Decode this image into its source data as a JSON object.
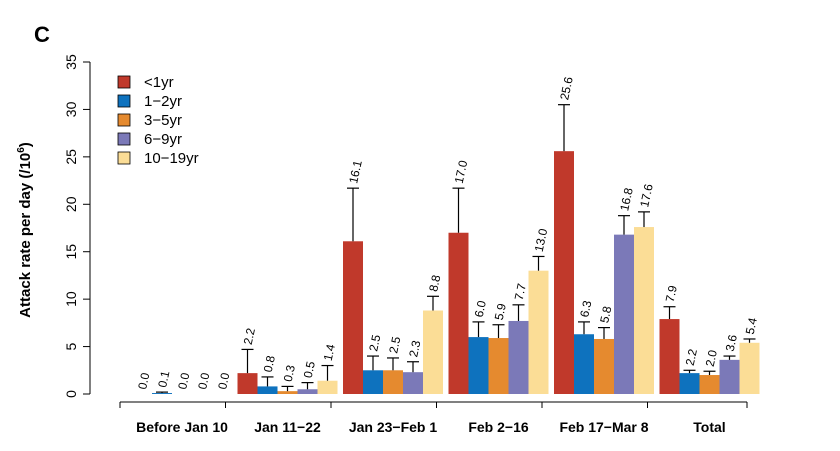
{
  "panel_label": "C",
  "chart_data": {
    "type": "bar",
    "ylabel": "Attack rate per day (/10",
    "ylabel_sup": "6",
    "ylabel_tail": ")",
    "ylim": [
      0,
      35
    ],
    "yticks": [
      0,
      5,
      10,
      15,
      20,
      25,
      30,
      35
    ],
    "grid": false,
    "legend_position": "top-left",
    "categories": [
      "Before Jan 10",
      "Jan 11−22",
      "Jan 23−Feb 1",
      "Feb 2−16",
      "Feb 17−Mar 8",
      "Total"
    ],
    "series": [
      {
        "name": "<1yr",
        "color": "#C0392B",
        "values": [
          0.0,
          2.2,
          16.1,
          17.0,
          25.6,
          7.9
        ],
        "labels": [
          "0.0",
          "2.2",
          "16.1",
          "17.0",
          "25.6",
          "7.9"
        ],
        "err_upper": [
          0.0,
          4.7,
          21.7,
          21.7,
          30.5,
          9.2
        ]
      },
      {
        "name": "1−2yr",
        "color": "#0E72BE",
        "values": [
          0.1,
          0.8,
          2.5,
          6.0,
          6.3,
          2.2
        ],
        "labels": [
          "0.1",
          "0.8",
          "2.5",
          "6.0",
          "6.3",
          "2.2"
        ],
        "err_upper": [
          0.2,
          1.8,
          4.0,
          7.6,
          7.6,
          2.5
        ]
      },
      {
        "name": "3−5yr",
        "color": "#E58A2F",
        "values": [
          0.0,
          0.3,
          2.5,
          5.9,
          5.8,
          2.0
        ],
        "labels": [
          "0.0",
          "0.3",
          "2.5",
          "5.9",
          "5.8",
          "2.0"
        ],
        "err_upper": [
          0.0,
          0.8,
          3.8,
          7.3,
          7.0,
          2.4
        ]
      },
      {
        "name": "6−9yr",
        "color": "#7B79B8",
        "values": [
          0.0,
          0.5,
          2.3,
          7.7,
          16.8,
          3.6
        ],
        "labels": [
          "0.0",
          "0.5",
          "2.3",
          "7.7",
          "16.8",
          "3.6"
        ],
        "err_upper": [
          0.0,
          1.2,
          3.4,
          9.4,
          18.8,
          4.0
        ]
      },
      {
        "name": "10−19yr",
        "color": "#FBDD96",
        "values": [
          0.0,
          1.4,
          8.8,
          13.0,
          17.6,
          5.4
        ],
        "labels": [
          "0.0",
          "1.4",
          "8.8",
          "13.0",
          "17.6",
          "5.4"
        ],
        "err_upper": [
          0.0,
          3.0,
          10.3,
          14.5,
          19.2,
          5.8
        ]
      }
    ]
  }
}
